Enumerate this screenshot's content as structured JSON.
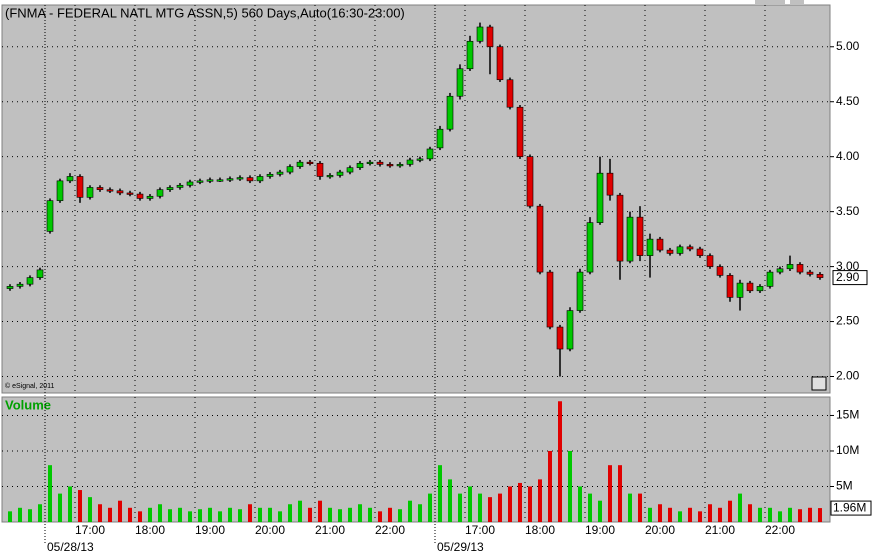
{
  "chart_data": {
    "type": "candlestick",
    "title": "(FNMA - FEDERAL NATL MTG ASSN,5) 560 Days,Auto(16:30-23:00)",
    "copyright": "© eSignal, 2011",
    "up_color": "#00c800",
    "down_color": "#e00000",
    "grid": true,
    "xlim": [
      0,
      82.5
    ],
    "xticks": [
      {
        "value": 7,
        "label": "17:00"
      },
      {
        "value": 13,
        "label": "18:00"
      },
      {
        "value": 19,
        "label": "19:00"
      },
      {
        "value": 25,
        "label": "20:00"
      },
      {
        "value": 31,
        "label": "21:00"
      },
      {
        "value": 37,
        "label": "22:00"
      },
      {
        "value": 46,
        "label": "17:00"
      },
      {
        "value": 52,
        "label": "18:00"
      },
      {
        "value": 58,
        "label": "19:00"
      },
      {
        "value": 64,
        "label": "20:00"
      },
      {
        "value": 70,
        "label": "21:00"
      },
      {
        "value": 76,
        "label": "22:00"
      }
    ],
    "date_ticks": [
      {
        "value": 4,
        "label": "05/28/13"
      },
      {
        "value": 43,
        "label": "05/29/13"
      }
    ],
    "ylim": [
      1.85,
      5.38
    ],
    "yticks": [
      {
        "value": 2,
        "label": "2.00"
      },
      {
        "value": 2.5,
        "label": "2.50"
      },
      {
        "value": 3,
        "label": "3.00"
      },
      {
        "value": 3.5,
        "label": "3.50"
      },
      {
        "value": 4,
        "label": "4.00"
      },
      {
        "value": 4.5,
        "label": "4.50"
      },
      {
        "value": 5,
        "label": "5.00"
      }
    ],
    "last_price": {
      "value": 2.9,
      "label": "2.90"
    },
    "open": [
      2.8,
      2.82,
      2.84,
      2.9,
      3.32,
      3.6,
      3.78,
      3.82,
      3.63,
      3.72,
      3.7,
      3.69,
      3.67,
      3.66,
      3.62,
      3.64,
      3.7,
      3.72,
      3.74,
      3.77,
      3.78,
      3.79,
      3.79,
      3.8,
      3.81,
      3.78,
      3.82,
      3.84,
      3.86,
      3.91,
      3.95,
      3.94,
      3.82,
      3.83,
      3.86,
      3.9,
      3.94,
      3.95,
      3.93,
      3.92,
      3.93,
      3.97,
      3.98,
      4.08,
      4.25,
      4.55,
      4.8,
      5.05,
      5.18,
      5.0,
      4.7,
      4.45,
      4.0,
      3.55,
      2.95,
      2.45,
      2.25,
      2.6,
      2.95,
      3.4,
      3.85,
      3.65,
      3.05,
      3.45,
      3.1,
      3.25,
      3.15,
      3.12,
      3.18,
      3.16,
      3.1,
      3.0,
      2.92,
      2.72,
      2.85,
      2.78,
      2.82,
      2.95,
      2.98,
      3.02,
      2.95,
      2.93
    ],
    "high": [
      2.84,
      2.86,
      2.92,
      2.99,
      3.62,
      3.8,
      3.85,
      3.84,
      3.74,
      3.74,
      3.72,
      3.71,
      3.69,
      3.68,
      3.66,
      3.72,
      3.74,
      3.76,
      3.79,
      3.8,
      3.81,
      3.81,
      3.82,
      3.83,
      3.83,
      3.84,
      3.86,
      3.88,
      3.93,
      3.97,
      3.97,
      3.96,
      3.85,
      3.88,
      3.92,
      3.96,
      3.97,
      3.97,
      3.95,
      3.95,
      3.99,
      4.0,
      4.09,
      4.28,
      4.58,
      4.84,
      5.1,
      5.22,
      5.2,
      5.02,
      4.72,
      4.47,
      4.02,
      3.57,
      2.97,
      2.47,
      2.63,
      2.98,
      3.45,
      4.0,
      3.98,
      3.67,
      3.5,
      3.55,
      3.3,
      3.27,
      3.17,
      3.2,
      3.2,
      3.18,
      3.12,
      3.02,
      2.94,
      2.88,
      2.87,
      2.84,
      2.97,
      3.0,
      3.1,
      3.04,
      2.97,
      2.95
    ],
    "low": [
      2.78,
      2.8,
      2.82,
      2.88,
      3.3,
      3.58,
      3.76,
      3.58,
      3.61,
      3.68,
      3.67,
      3.65,
      3.64,
      3.6,
      3.6,
      3.62,
      3.68,
      3.7,
      3.72,
      3.75,
      3.76,
      3.77,
      3.77,
      3.78,
      3.76,
      3.76,
      3.8,
      3.82,
      3.84,
      3.89,
      3.92,
      3.79,
      3.8,
      3.81,
      3.84,
      3.88,
      3.92,
      3.91,
      3.9,
      3.9,
      3.91,
      3.95,
      3.96,
      4.06,
      4.23,
      4.52,
      4.78,
      5.03,
      4.75,
      4.68,
      4.43,
      3.98,
      3.53,
      2.93,
      2.43,
      2.0,
      2.23,
      2.58,
      2.93,
      3.38,
      3.6,
      2.88,
      3.03,
      3.05,
      2.9,
      3.13,
      3.1,
      3.1,
      3.14,
      3.08,
      2.98,
      2.9,
      2.68,
      2.6,
      2.76,
      2.76,
      2.8,
      2.93,
      2.96,
      2.93,
      2.91,
      2.88
    ],
    "close": [
      2.82,
      2.84,
      2.9,
      2.97,
      3.6,
      3.78,
      3.82,
      3.63,
      3.72,
      3.7,
      3.69,
      3.67,
      3.66,
      3.62,
      3.64,
      3.7,
      3.72,
      3.74,
      3.77,
      3.78,
      3.79,
      3.79,
      3.8,
      3.81,
      3.78,
      3.82,
      3.84,
      3.86,
      3.91,
      3.95,
      3.94,
      3.82,
      3.83,
      3.86,
      3.9,
      3.94,
      3.95,
      3.93,
      3.92,
      3.93,
      3.97,
      3.98,
      4.07,
      4.25,
      4.55,
      4.8,
      5.05,
      5.18,
      5.0,
      4.7,
      4.45,
      4.0,
      3.55,
      2.95,
      2.45,
      2.25,
      2.6,
      2.95,
      3.4,
      3.85,
      3.65,
      3.05,
      3.45,
      3.1,
      3.25,
      3.15,
      3.12,
      3.18,
      3.16,
      3.1,
      3.0,
      2.92,
      2.72,
      2.85,
      2.78,
      2.82,
      2.95,
      2.98,
      3.02,
      2.95,
      2.93,
      2.9
    ],
    "volume": {
      "label": "Volume",
      "color": "#00a000",
      "ylim": [
        0,
        17.6
      ],
      "yticks": [
        {
          "value": 5,
          "label": "5M"
        },
        {
          "value": 10,
          "label": "10M"
        },
        {
          "value": 15,
          "label": "15M"
        }
      ],
      "last_value": {
        "value": 1.96,
        "label": "1.96M"
      },
      "values": [
        1.5,
        2,
        1.8,
        2.5,
        8,
        4,
        5,
        4.5,
        3.5,
        2.5,
        2,
        3,
        2,
        1.5,
        2,
        2.5,
        1.8,
        2,
        1.5,
        1.8,
        2,
        1.5,
        2,
        1.8,
        2.5,
        2,
        2,
        1.5,
        2.5,
        3,
        2,
        3,
        2,
        1.8,
        2,
        2.5,
        2,
        1.5,
        2,
        1.8,
        3,
        2.5,
        4,
        8,
        6,
        4,
        5,
        4,
        3.5,
        4,
        5,
        5.5,
        5,
        6,
        10,
        17,
        10,
        5,
        4,
        3,
        8,
        8,
        4,
        4,
        2,
        2.5,
        2,
        1.5,
        2,
        1.5,
        2.5,
        2,
        3,
        4,
        2.5,
        2,
        2,
        1.5,
        2,
        1.8,
        2,
        1.96
      ]
    }
  }
}
